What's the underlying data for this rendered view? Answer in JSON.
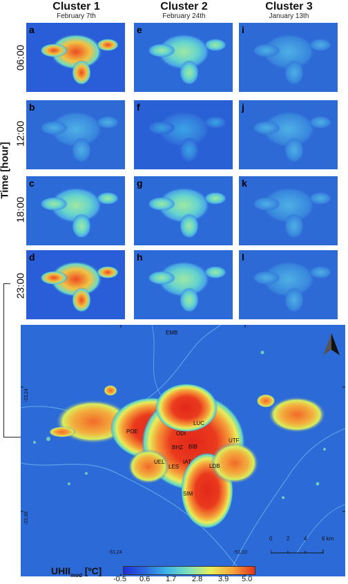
{
  "columns": [
    {
      "title": "Cluster 1",
      "date": "February 7th"
    },
    {
      "title": "Cluster 2",
      "date": "February 24th"
    },
    {
      "title": "Cluster 3",
      "date": "January 13th"
    }
  ],
  "y_axis_label": "Time [hour]",
  "rows": [
    "06:00",
    "12:00",
    "18:00",
    "23:00"
  ],
  "panel_letters": [
    "a",
    "e",
    "i",
    "b",
    "f",
    "j",
    "c",
    "g",
    "k",
    "d",
    "h",
    "l"
  ],
  "map": {
    "places": [
      "EMB",
      "POE",
      "LUC",
      "ODI",
      "BIB",
      "BHZ",
      "UTF",
      "UEL",
      "IAT",
      "LES",
      "LDB",
      "SIM"
    ],
    "lat_labels": [
      "-23,24",
      "-23,38"
    ],
    "lon_labels": [
      "-51,24",
      "-51,10"
    ],
    "scale_labels": [
      "0",
      "2",
      "4",
      "6 km"
    ],
    "north_arrow": "north-arrow-icon"
  },
  "colorbar": {
    "title_main": "UHII",
    "title_sub": "mod",
    "title_unit": " [ºC]",
    "ticks": [
      "-0.5",
      "0.6",
      "1.7",
      "2.8",
      "3.9",
      "5.0"
    ],
    "colors": [
      "#1f2fd6",
      "#2a6be0",
      "#3fb6e8",
      "#7fe3b8",
      "#e9ee5a",
      "#f6a43a",
      "#e2321c"
    ]
  }
}
